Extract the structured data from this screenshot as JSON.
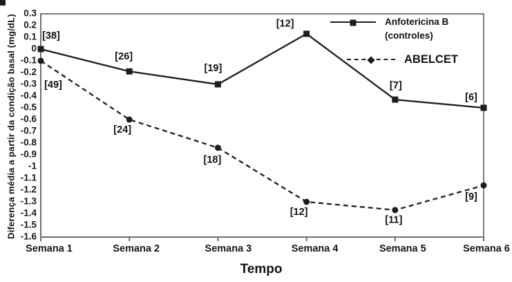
{
  "figure": {
    "background": "#ffffff",
    "ink": "#1d1d1d",
    "border_color": "#7d7d7d",
    "axis_color": "#6e6e6e"
  },
  "chart_data": {
    "type": "line",
    "title": "",
    "xlabel": "Tempo",
    "ylabel": "Diferença média a partir da condição basal (mg/dL)",
    "x_categories": [
      "Semana 1",
      "Semana 2",
      "Semana 3",
      "Semana 4",
      "Semana 5",
      "Semana 6"
    ],
    "ylim": [
      -1.6,
      0.3
    ],
    "ytick_step": 0.1,
    "yticks": [
      "0.3",
      "0.2",
      "0.1",
      "0",
      "-0.1",
      "-0.2",
      "-0.3",
      "-0.4",
      "-0.5",
      "-0.6",
      "-0.7",
      "-0.8",
      "-0.9",
      "-1",
      "-1.1",
      "-1.2",
      "-1.3",
      "-1.4",
      "-1.5",
      "-1.6"
    ],
    "grid": false,
    "legend_position": "top-right-inside",
    "series": [
      {
        "name": "Anfotericina B (controles)",
        "legend_label_lines": [
          "Anfotericina B",
          "(controles)"
        ],
        "line_style": "solid",
        "marker": "square",
        "values": [
          0,
          -0.19,
          -0.3,
          0.13,
          -0.43,
          -0.5
        ],
        "point_counts": [
          "[38]",
          "[26]",
          "[19]",
          "[12]",
          "[7]",
          "[6]"
        ],
        "count_label_offsets": [
          [
            15,
            -19
          ],
          [
            -8,
            -21
          ],
          [
            -7,
            -23
          ],
          [
            -31,
            -14
          ],
          [
            1,
            -20
          ],
          [
            -18,
            -15
          ]
        ]
      },
      {
        "name": "ABELCET",
        "legend_label_lines": [
          "ABELCET"
        ],
        "line_style": "dashed",
        "marker": "circle",
        "values": [
          -0.1,
          -0.6,
          -0.84,
          -1.3,
          -1.37,
          -1.16
        ],
        "point_counts": [
          "[49]",
          "[24]",
          "[18]",
          "[12]",
          "[11]",
          "[9]"
        ],
        "count_label_offsets": [
          [
            18,
            35
          ],
          [
            -10,
            15
          ],
          [
            -8,
            18
          ],
          [
            -11,
            15
          ],
          [
            -2,
            15
          ],
          [
            -18,
            17
          ]
        ]
      }
    ]
  }
}
